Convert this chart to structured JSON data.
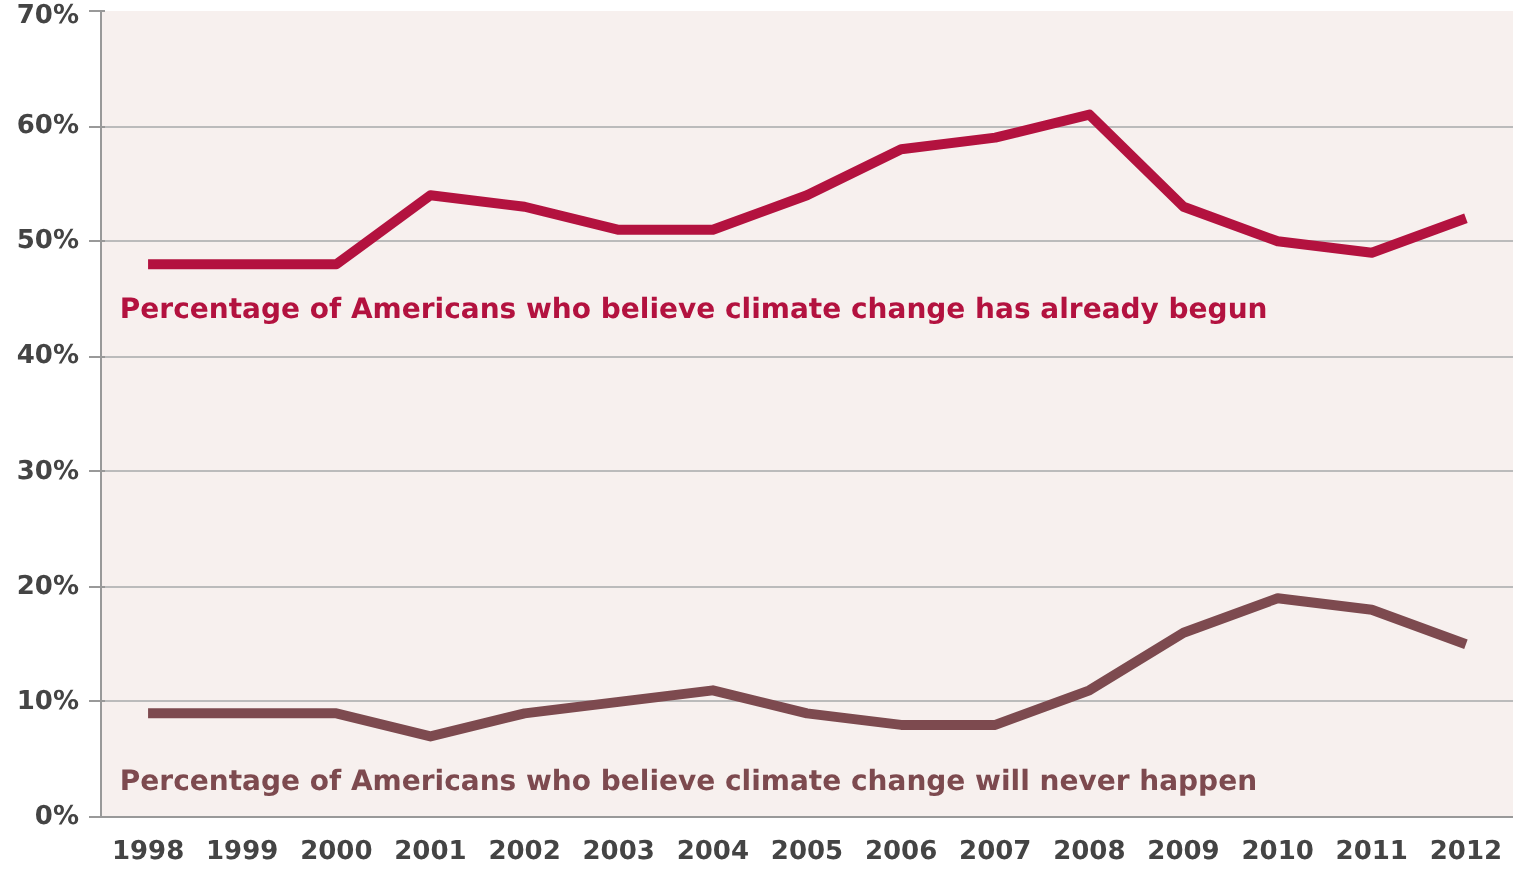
{
  "chart_data": {
    "type": "line",
    "categories": [
      "1998",
      "1999",
      "2000",
      "2001",
      "2002",
      "2003",
      "2004",
      "2005",
      "2006",
      "2007",
      "2008",
      "2009",
      "2010",
      "2011",
      "2012"
    ],
    "series": [
      {
        "name": "Percentage of Americans who believe climate change has already begun",
        "color": "#b3123f",
        "values": [
          48,
          48,
          48,
          54,
          53,
          51,
          51,
          54,
          58,
          59,
          61,
          53,
          50,
          49,
          52
        ]
      },
      {
        "name": "Percentage of Americans who believe climate change will never happen",
        "color": "#7d4a4f",
        "values": [
          9,
          9,
          9,
          7,
          9,
          10,
          11,
          9,
          8,
          8,
          11,
          16,
          19,
          18,
          15
        ]
      }
    ],
    "ylim": [
      0,
      70
    ],
    "yticks": [
      {
        "value": 0,
        "label": "0%"
      },
      {
        "value": 10,
        "label": "10%"
      },
      {
        "value": 20,
        "label": "20%"
      },
      {
        "value": 30,
        "label": "30%"
      },
      {
        "value": 40,
        "label": "40%"
      },
      {
        "value": 50,
        "label": "50%"
      },
      {
        "value": 60,
        "label": "60%"
      },
      {
        "value": 70,
        "label": "70%"
      }
    ],
    "grid": "y",
    "marker": "none",
    "line_style": "solid"
  }
}
